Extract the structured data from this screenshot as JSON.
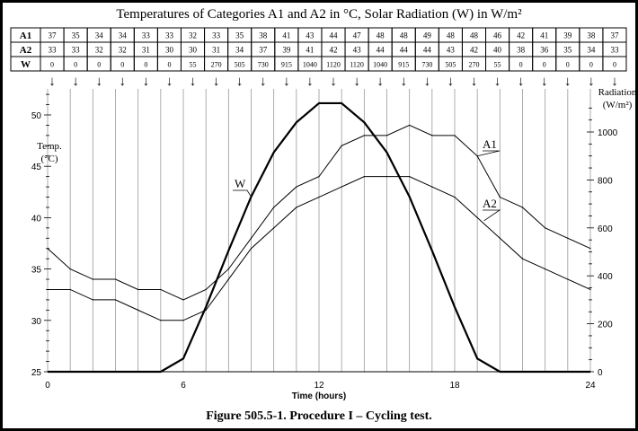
{
  "chart_data": {
    "type": "line",
    "title": "Temperatures of Categories A1 and A2 in °C, Solar Radiation (W) in W/m²",
    "caption": "Figure 505.5-1.  Procedure I – Cycling test.",
    "xlabel": "Time (hours)",
    "ylabel_left": [
      "Temp.",
      "(°C)"
    ],
    "ylabel_right": [
      "Radiation",
      "(W/m²)"
    ],
    "x": [
      0,
      1,
      2,
      3,
      4,
      5,
      6,
      7,
      8,
      9,
      10,
      11,
      12,
      13,
      14,
      15,
      16,
      17,
      18,
      19,
      20,
      21,
      22,
      23,
      24
    ],
    "xlim": [
      0,
      24
    ],
    "xticks": [
      "0",
      "6",
      "12",
      "18",
      "24"
    ],
    "ylim_left": [
      25,
      50
    ],
    "yticks_left": [
      "25",
      "30",
      "35",
      "40",
      "45",
      "50"
    ],
    "ylim_right": [
      0,
      1000
    ],
    "yticks_right": [
      "0",
      "200",
      "400",
      "600",
      "800",
      "1000"
    ],
    "grid": "vertical lines at each hour",
    "series": [
      {
        "name": "A1",
        "axis": "left",
        "values": [
          37,
          35,
          34,
          34,
          33,
          33,
          32,
          33,
          35,
          38,
          41,
          43,
          44,
          47,
          48,
          48,
          49,
          48,
          48,
          46,
          42,
          41,
          39,
          38,
          37
        ]
      },
      {
        "name": "A2",
        "axis": "left",
        "values": [
          33,
          33,
          32,
          32,
          31,
          30,
          30,
          31,
          34,
          37,
          39,
          41,
          42,
          43,
          44,
          44,
          44,
          43,
          42,
          40,
          38,
          36,
          35,
          34,
          33
        ]
      },
      {
        "name": "W",
        "axis": "right",
        "values": [
          0,
          0,
          0,
          0,
          0,
          0,
          55,
          270,
          505,
          730,
          915,
          1040,
          1120,
          1120,
          1040,
          915,
          730,
          505,
          270,
          55,
          0,
          0,
          0,
          0,
          0
        ]
      }
    ]
  }
}
